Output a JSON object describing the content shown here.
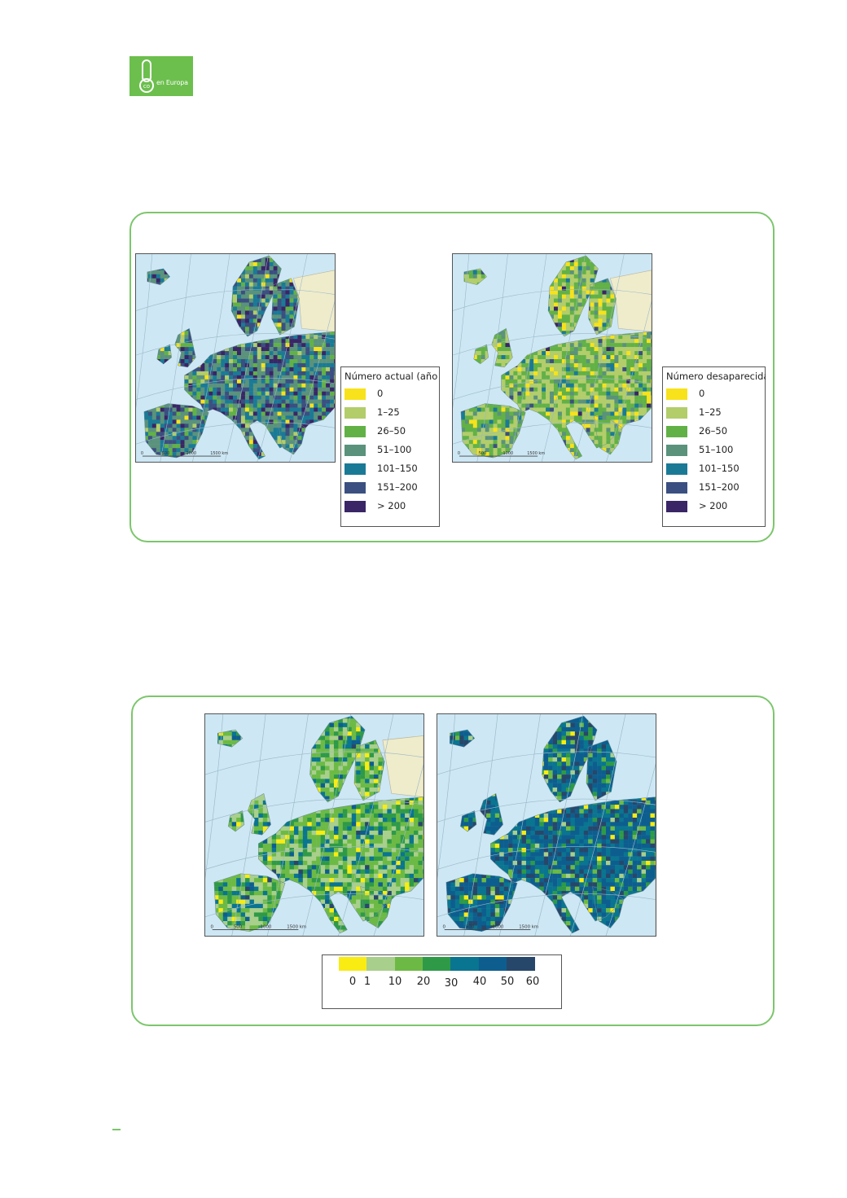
{
  "header": {
    "logo_text": "en Europa",
    "logo_icon": "thermometer-co-icon"
  },
  "figure1": {
    "legend_left": {
      "title": "Número actual (año",
      "items": [
        {
          "label": "0",
          "color": "#f7e21b"
        },
        {
          "label": "1–25",
          "color": "#b2cd6a"
        },
        {
          "label": "26–50",
          "color": "#62b147"
        },
        {
          "label": "51–100",
          "color": "#5a927c"
        },
        {
          "label": "101–150",
          "color": "#1a7a96"
        },
        {
          "label": "151–200",
          "color": "#3b4f80"
        },
        {
          "label": "> 200",
          "color": "#3a2566"
        }
      ]
    },
    "legend_right": {
      "title": "Número desaparecidas",
      "items": [
        {
          "label": "0",
          "color": "#f7e21b"
        },
        {
          "label": "1–25",
          "color": "#b2cd6a"
        },
        {
          "label": "26–50",
          "color": "#62b147"
        },
        {
          "label": "51–100",
          "color": "#5a927c"
        },
        {
          "label": "101–150",
          "color": "#1a7a96"
        },
        {
          "label": "151–200",
          "color": "#3b4f80"
        },
        {
          "label": "> 200",
          "color": "#3a2566"
        }
      ]
    },
    "map_scale_labels": [
      "0",
      "500",
      "1000",
      "1500 km"
    ]
  },
  "figure2": {
    "map_scale_labels": [
      "0",
      "500",
      "1000",
      "1500 km"
    ],
    "colorbar": {
      "colors": [
        "#f8ec12",
        "#a9cf8c",
        "#6cba45",
        "#2e9a48",
        "#0a7590",
        "#0d5e8f",
        "#27476a"
      ],
      "tick_labels": [
        "0",
        "1",
        "10",
        "20",
        "30",
        "40",
        "50",
        "60"
      ]
    }
  }
}
